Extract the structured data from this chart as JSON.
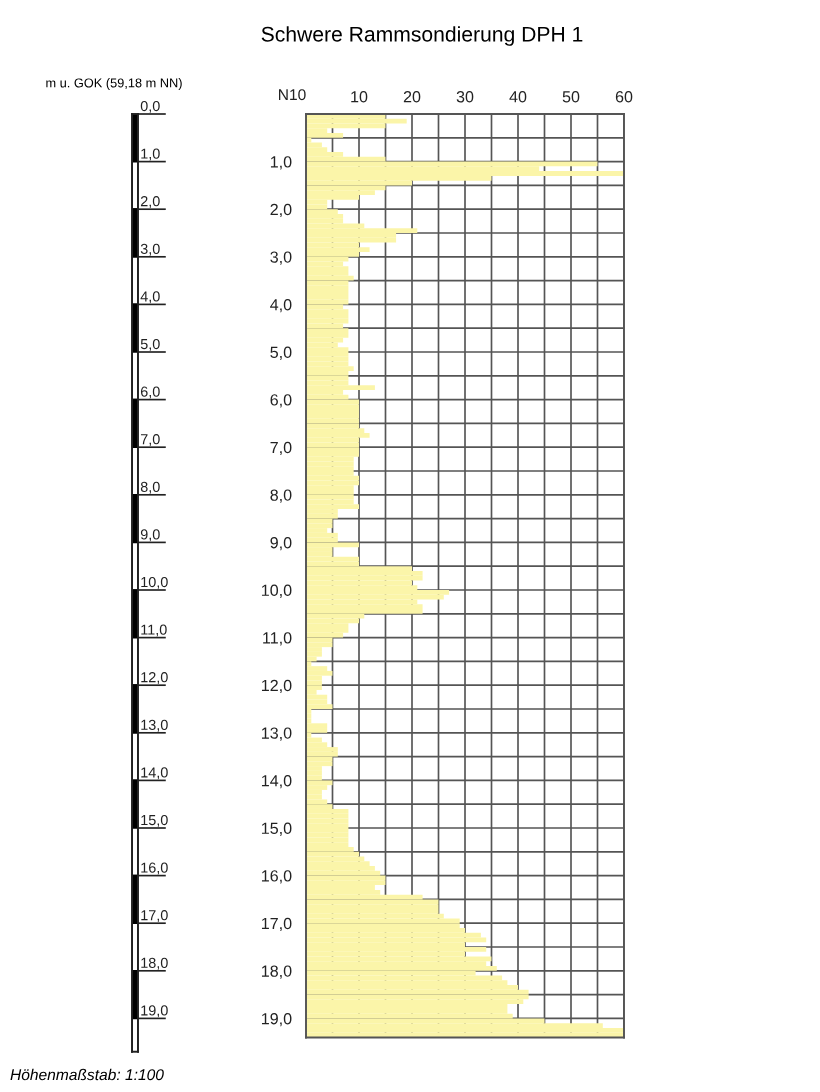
{
  "chart_data": [
    {
      "type": "bar",
      "stacked": true,
      "ylabel": "m u. GOK (59,18 m NN)",
      "categories": [
        null
      ],
      "series": [
        {
          "color": "#000000",
          "values": [
            1
          ]
        },
        {
          "color": "#ffffff",
          "values": [
            1
          ]
        },
        {
          "color": "#000000",
          "values": [
            1
          ]
        },
        {
          "color": "#ffffff",
          "values": [
            1
          ]
        },
        {
          "color": "#000000",
          "values": [
            1
          ]
        },
        {
          "color": "#ffffff",
          "values": [
            1
          ]
        },
        {
          "color": "#000000",
          "values": [
            1
          ]
        },
        {
          "color": "#ffffff",
          "values": [
            1
          ]
        },
        {
          "color": "#000000",
          "values": [
            1
          ]
        },
        {
          "color": "#ffffff",
          "values": [
            1
          ]
        },
        {
          "color": "#000000",
          "values": [
            1
          ]
        },
        {
          "color": "#ffffff",
          "values": [
            1
          ]
        },
        {
          "color": "#000000",
          "values": [
            1
          ]
        },
        {
          "color": "#ffffff",
          "values": [
            1
          ]
        },
        {
          "color": "#000000",
          "values": [
            1
          ]
        },
        {
          "color": "#ffffff",
          "values": [
            1
          ]
        },
        {
          "color": "#000000",
          "values": [
            1
          ]
        },
        {
          "color": "#ffffff",
          "values": [
            1
          ]
        },
        {
          "color": "#000000",
          "values": [
            1
          ]
        },
        {
          "color": "#ffffff",
          "values": [
            0.7
          ]
        }
      ],
      "ylim": [
        19.7,
        0
      ],
      "yticks": [
        {
          "value": 0,
          "label": "0,0"
        },
        {
          "value": 1,
          "label": "1,0"
        },
        {
          "value": 2,
          "label": "2,0"
        },
        {
          "value": 3,
          "label": "3,0"
        },
        {
          "value": 4,
          "label": "4,0"
        },
        {
          "value": 5,
          "label": "5,0"
        },
        {
          "value": 6,
          "label": "6,0"
        },
        {
          "value": 7,
          "label": "7,0"
        },
        {
          "value": 8,
          "label": "8,0"
        },
        {
          "value": 9,
          "label": "9,0"
        },
        {
          "value": 10,
          "label": "10,0"
        },
        {
          "value": 11,
          "label": "11,0"
        },
        {
          "value": 12,
          "label": "12,0"
        },
        {
          "value": 13,
          "label": "13,0"
        },
        {
          "value": 14,
          "label": "14,0"
        },
        {
          "value": 15,
          "label": "15,0"
        },
        {
          "value": 16,
          "label": "16,0"
        },
        {
          "value": 17,
          "label": "17,0"
        },
        {
          "value": 18,
          "label": "18,0"
        },
        {
          "value": 19,
          "label": "19,0"
        }
      ],
      "tick_labels": "y",
      "annotations": [
        "Höhenmaßstab: 1:100"
      ]
    },
    {
      "type": "bar",
      "title": "Schwere Rammsondierung DPH 1",
      "xlabel": "N10",
      "orientation": "horizontal",
      "color": "#fbf5a9",
      "x": [
        0.05,
        0.15,
        0.25,
        0.35,
        0.45,
        0.55,
        0.65,
        0.75,
        0.85,
        0.95,
        1.05,
        1.15,
        1.25,
        1.35,
        1.45,
        1.55,
        1.65,
        1.75,
        1.85,
        1.95,
        2.05,
        2.15,
        2.25,
        2.35,
        2.45,
        2.55,
        2.65,
        2.75,
        2.85,
        2.95,
        3.05,
        3.15,
        3.25,
        3.35,
        3.45,
        3.55,
        3.65,
        3.75,
        3.85,
        3.95,
        4.05,
        4.15,
        4.25,
        4.35,
        4.45,
        4.55,
        4.65,
        4.75,
        4.85,
        4.95,
        5.05,
        5.15,
        5.25,
        5.35,
        5.45,
        5.55,
        5.65,
        5.75,
        5.85,
        5.95,
        6.05,
        6.15,
        6.25,
        6.35,
        6.45,
        6.55,
        6.65,
        6.75,
        6.85,
        6.95,
        7.05,
        7.15,
        7.25,
        7.35,
        7.45,
        7.55,
        7.65,
        7.75,
        7.85,
        7.95,
        8.05,
        8.15,
        8.25,
        8.35,
        8.45,
        8.55,
        8.65,
        8.75,
        8.85,
        8.95,
        9.05,
        9.15,
        9.25,
        9.35,
        9.45,
        9.55,
        9.65,
        9.75,
        9.85,
        9.95,
        10.05,
        10.15,
        10.25,
        10.35,
        10.45,
        10.55,
        10.65,
        10.75,
        10.85,
        10.95,
        11.05,
        11.15,
        11.25,
        11.35,
        11.45,
        11.55,
        11.65,
        11.75,
        11.85,
        11.95,
        12.05,
        12.15,
        12.25,
        12.35,
        12.45,
        12.55,
        12.65,
        12.75,
        12.85,
        12.95,
        13.05,
        13.15,
        13.25,
        13.35,
        13.45,
        13.55,
        13.65,
        13.75,
        13.85,
        13.95,
        14.05,
        14.15,
        14.25,
        14.35,
        14.45,
        14.55,
        14.65,
        14.75,
        14.85,
        14.95,
        15.05,
        15.15,
        15.25,
        15.35,
        15.45,
        15.55,
        15.65,
        15.75,
        15.85,
        15.95,
        16.05,
        16.15,
        16.25,
        16.35,
        16.45,
        16.55,
        16.65,
        16.75,
        16.85,
        16.95,
        17.05,
        17.15,
        17.25,
        17.35,
        17.45,
        17.55,
        17.65,
        17.75,
        17.85,
        17.95,
        18.05,
        18.15,
        18.25,
        18.35,
        18.45,
        18.55,
        18.65,
        18.75,
        18.85,
        18.95,
        19.05,
        19.15,
        19.25,
        19.35
      ],
      "values": [
        15,
        19,
        15,
        4,
        7,
        1,
        3,
        4,
        7,
        15,
        55,
        44,
        60,
        35,
        20,
        15,
        13,
        10,
        4,
        4,
        6,
        7,
        7,
        11,
        21,
        17,
        17,
        10,
        12,
        10,
        8,
        7,
        8,
        8,
        9,
        8,
        8,
        8,
        8,
        8,
        7,
        8,
        8,
        8,
        7,
        8,
        8,
        7,
        6,
        8,
        8,
        8,
        8,
        9,
        8,
        8,
        8,
        13,
        7,
        8,
        10,
        10,
        10,
        10,
        10,
        10,
        11,
        12,
        10,
        10,
        10,
        10,
        9,
        9,
        9,
        9,
        10,
        10,
        9,
        9,
        9,
        9,
        10,
        6,
        6,
        5,
        5,
        4,
        6,
        6,
        10,
        5,
        5,
        10,
        10,
        20,
        22,
        22,
        20,
        21,
        27,
        26,
        21,
        22,
        22,
        11,
        10,
        8,
        8,
        7,
        5,
        5,
        3,
        3,
        2,
        1,
        4,
        5,
        3,
        3,
        3,
        2,
        4,
        4,
        5,
        1,
        1,
        1,
        4,
        4,
        1,
        3,
        4,
        6,
        6,
        5,
        5,
        3,
        3,
        3,
        5,
        4,
        3,
        3,
        4,
        5,
        8,
        8,
        8,
        8,
        8,
        8,
        8,
        8,
        9,
        10,
        11,
        12,
        13,
        14,
        15,
        15,
        13,
        14,
        22,
        25,
        25,
        25,
        26,
        29,
        29,
        30,
        33,
        34,
        30,
        34,
        30,
        35,
        34,
        36,
        32,
        37,
        38,
        40,
        42,
        42,
        41,
        38,
        38,
        39,
        45,
        56,
        60,
        60
      ],
      "xlim": [
        0,
        60
      ],
      "xticks": [
        {
          "value": 5,
          "label": null
        },
        10,
        {
          "value": 15,
          "label": null
        },
        20,
        {
          "value": 25,
          "label": null
        },
        30,
        {
          "value": 35,
          "label": null
        },
        40,
        {
          "value": 45,
          "label": null
        },
        50,
        {
          "value": 55,
          "label": null
        },
        60
      ],
      "ylim": [
        19.4,
        0
      ],
      "yticks": [
        {
          "value": 0.5,
          "label": null
        },
        {
          "value": 1,
          "label": "1,0"
        },
        {
          "value": 1.5,
          "label": null
        },
        {
          "value": 2,
          "label": "2,0"
        },
        {
          "value": 2.5,
          "label": null
        },
        {
          "value": 3,
          "label": "3,0"
        },
        {
          "value": 3.5,
          "label": null
        },
        {
          "value": 4,
          "label": "4,0"
        },
        {
          "value": 4.5,
          "label": null
        },
        {
          "value": 5,
          "label": "5,0"
        },
        {
          "value": 5.5,
          "label": null
        },
        {
          "value": 6,
          "label": "6,0"
        },
        {
          "value": 6.5,
          "label": null
        },
        {
          "value": 7,
          "label": "7,0"
        },
        {
          "value": 7.5,
          "label": null
        },
        {
          "value": 8,
          "label": "8,0"
        },
        {
          "value": 8.5,
          "label": null
        },
        {
          "value": 9,
          "label": "9,0"
        },
        {
          "value": 9.5,
          "label": null
        },
        {
          "value": 10,
          "label": "10,0"
        },
        {
          "value": 10.5,
          "label": null
        },
        {
          "value": 11,
          "label": "11,0"
        },
        {
          "value": 11.5,
          "label": null
        },
        {
          "value": 12,
          "label": "12,0"
        },
        {
          "value": 12.5,
          "label": null
        },
        {
          "value": 13,
          "label": "13,0"
        },
        {
          "value": 13.5,
          "label": null
        },
        {
          "value": 14,
          "label": "14,0"
        },
        {
          "value": 14.5,
          "label": null
        },
        {
          "value": 15,
          "label": "15,0"
        },
        {
          "value": 15.5,
          "label": null
        },
        {
          "value": 16,
          "label": "16,0"
        },
        {
          "value": 16.5,
          "label": null
        },
        {
          "value": 17,
          "label": "17,0"
        },
        {
          "value": 17.5,
          "label": null
        },
        {
          "value": 18,
          "label": "18,0"
        },
        {
          "value": 18.5,
          "label": null
        },
        {
          "value": 19,
          "label": "19,0"
        }
      ],
      "grid": true
    }
  ]
}
